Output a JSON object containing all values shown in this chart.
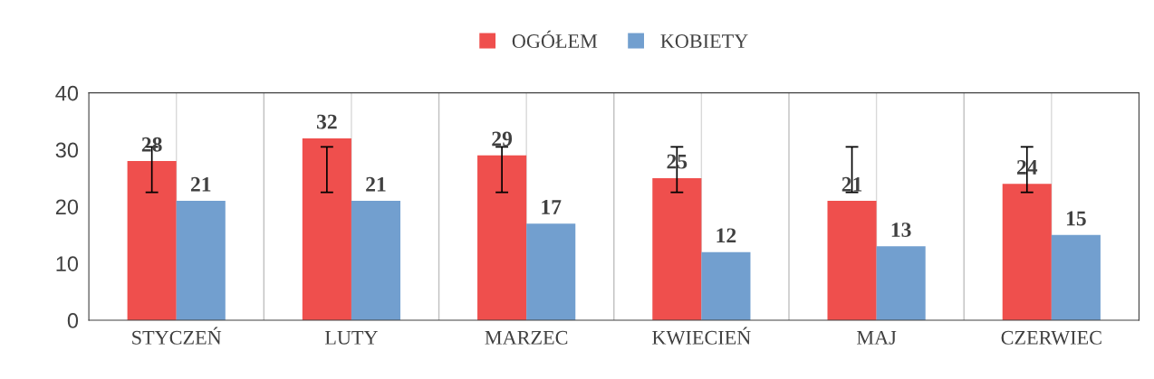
{
  "chart_data": {
    "type": "bar",
    "categories": [
      "STYCZEŃ",
      "LUTY",
      "MARZEC",
      "KWIECIEŃ",
      "MAJ",
      "CZERWIEC"
    ],
    "series": [
      {
        "name": "OGÓŁEM",
        "color": "#ef4f4d",
        "values": [
          28,
          32,
          29,
          25,
          21,
          24
        ],
        "errors": [
          [
            22.5,
            30.5
          ],
          [
            22.5,
            30.5
          ],
          [
            22.5,
            30.5
          ],
          [
            22.5,
            30.5
          ],
          [
            22.5,
            30.5
          ],
          [
            22.5,
            30.5
          ]
        ]
      },
      {
        "name": "KOBIETY",
        "color": "#729fcf",
        "values": [
          21,
          21,
          17,
          12,
          13,
          15
        ]
      }
    ],
    "ylim": [
      0,
      40
    ],
    "yticks": [
      0,
      10,
      20,
      30,
      40
    ],
    "grid": "x",
    "legend": "top",
    "data_labels": true
  }
}
